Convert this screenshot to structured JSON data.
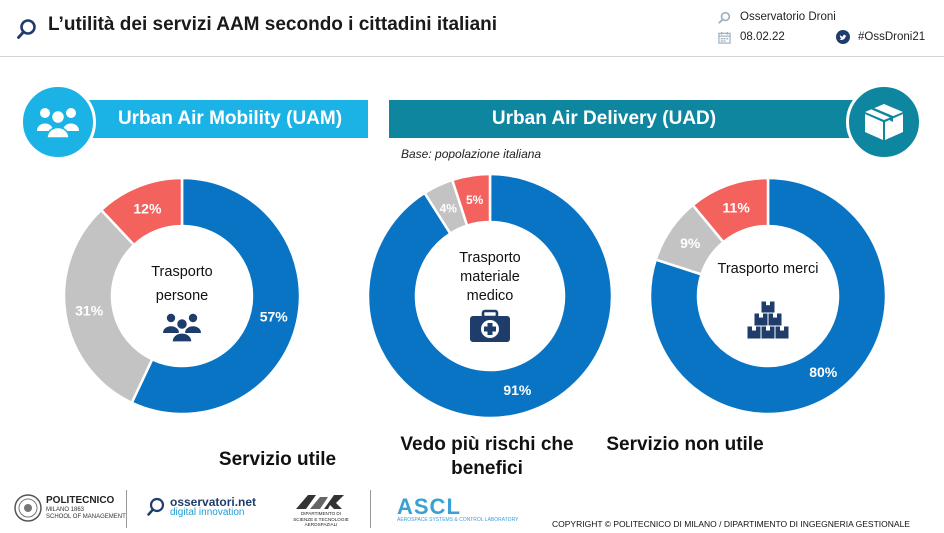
{
  "header": {
    "title": "L’utilità dei servizi AAM secondo i cittadini italiani",
    "org": "Osservatorio Droni",
    "date": "08.02.22",
    "hashtag": "#OssDroni21"
  },
  "banners": {
    "uam": "Urban Air Mobility (UAM)",
    "uad": "Urban Air Delivery (UAD)"
  },
  "base_note": "Base: popolazione italiana",
  "legend": {
    "useful": "Servizio utile",
    "risk": "Vedo più rischi che benefici",
    "useless": "Servizio non utile"
  },
  "colors": {
    "useful": "#0a74c4",
    "risk": "#c3c3c3",
    "useless": "#f4625e",
    "uam_banner": "#1bb3e6",
    "uad_banner": "#0e86a0"
  },
  "chart_data": [
    {
      "type": "pie",
      "center_label": "Trasporto persone",
      "icon": "people-icon",
      "slices": [
        {
          "category": "Servizio utile",
          "value": 57,
          "label": "57%"
        },
        {
          "category": "Vedo più rischi che benefici",
          "value": 31,
          "label": "31%"
        },
        {
          "category": "Servizio non utile",
          "value": 12,
          "label": "12%"
        }
      ]
    },
    {
      "type": "pie",
      "center_label": "Trasporto materiale medico",
      "icon": "medical-kit-icon",
      "slices": [
        {
          "category": "Servizio utile",
          "value": 91,
          "label": "91%"
        },
        {
          "category": "Vedo più rischi che benefici",
          "value": 4,
          "label": "4%"
        },
        {
          "category": "Servizio non utile",
          "value": 5,
          "label": "5%"
        }
      ]
    },
    {
      "type": "pie",
      "center_label": "Trasporto merci",
      "icon": "boxes-icon",
      "slices": [
        {
          "category": "Servizio utile",
          "value": 80,
          "label": "80%"
        },
        {
          "category": "Vedo più rischi che benefici",
          "value": 9,
          "label": "9%"
        },
        {
          "category": "Servizio non utile",
          "value": 11,
          "label": "11%"
        }
      ]
    }
  ],
  "footer": {
    "polimi_name": "POLITECNICO",
    "polimi_sub1": "MILANO 1863",
    "polimi_sub2": "SCHOOL OF MANAGEMENT",
    "oss_name": "osservatori.net",
    "oss_sub": "digital innovation",
    "dastu_line1": "DIPARTIMENTO DI",
    "dastu_line2": "SCIENZE E TECNOLOGIE",
    "dastu_line3": "AEROSPAZIALI",
    "ascl_name": "ASCL",
    "ascl_sub": "AEROSPACE SYSTEMS & CONTROL LABORATORY",
    "copyright": "COPYRIGHT © POLITECNICO DI MILANO / DIPARTIMENTO DI INGEGNERIA GESTIONALE"
  }
}
